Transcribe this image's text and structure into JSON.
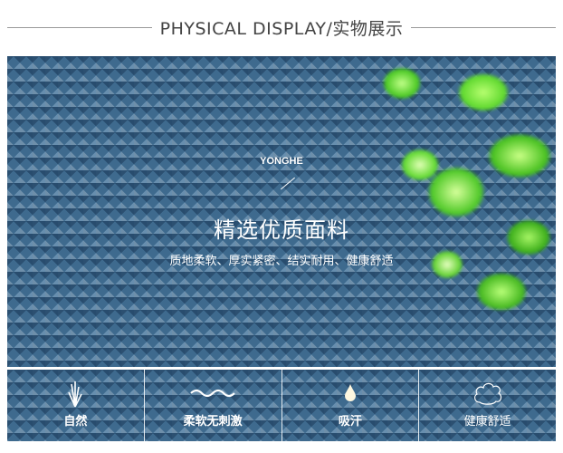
{
  "header": {
    "title": "PHYSICAL DISPLAY/实物展示"
  },
  "hero": {
    "brand": "YONGHE",
    "title": "精选优质面料",
    "subtitle": "质地柔软、厚实紧密、结实耐用、健康舒适"
  },
  "features": [
    {
      "label": "自然",
      "icon": "grass-icon"
    },
    {
      "label": "柔软无刺激",
      "icon": "wave-icon"
    },
    {
      "label": "吸汗",
      "icon": "water-drop-icon"
    },
    {
      "label": "健康舒适",
      "icon": "cloud-icon"
    }
  ],
  "colors": {
    "fabric": "#3e6a8e",
    "leaf": "#5fd82e"
  }
}
